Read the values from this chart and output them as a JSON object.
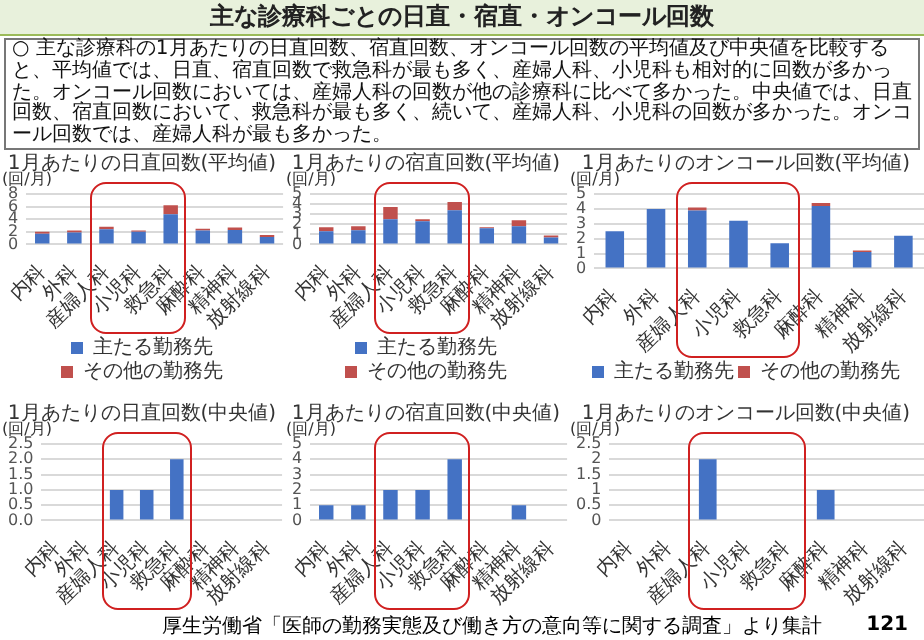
{
  "chart_data": [
    {
      "type": "other",
      "title": "主な診療科ごとの日直・宿直・オンコール回数",
      "annotations": [
        "○ 主な診療科の1月あたりの日直回数、宿直回数、オンコール回数の平均値及び中央値を比較すると、平均値では、日直、宿直回数で救急科が最も多く、産婦人科、小児科も相対的に回数が多かった。オンコール回数においては、産婦人科の回数が他の診療科に比べて多かった。中央値では、日直回数、宿直回数において、救急科が最も多く、続いて、産婦人科、小児科の回数が多かった。オンコール回数では、産婦人科が最も多かった。",
        "厚生労働省「医師の勤務実態及び働き方の意向等に関する調査」より集計",
        "121"
      ]
    },
    {
      "type": "bar",
      "title": "1月あたりの日直回数(平均値)",
      "ylabel": "(回/月)",
      "categories": [
        "内科",
        "外科",
        "産婦人科",
        "小児科",
        "救急科",
        "麻酔科",
        "精神科",
        "放射線科"
      ],
      "stacked": true,
      "ylim": [
        0,
        8
      ],
      "yticks": [
        0,
        2,
        4,
        6,
        8
      ],
      "grid": "y",
      "legend": "bottom",
      "series": [
        {
          "name": "主たる勤務先",
          "color": "#4472c4",
          "values": [
            1.7,
            1.9,
            2.4,
            2.0,
            4.8,
            2.2,
            2.3,
            1.2
          ]
        },
        {
          "name": "その他の勤務先",
          "color": "#c0504d",
          "values": [
            0.3,
            0.3,
            0.4,
            0.2,
            1.4,
            0.3,
            0.4,
            0.3
          ]
        }
      ]
    },
    {
      "type": "bar",
      "title": "1月あたりの宿直回数(平均値)",
      "ylabel": "(回/月)",
      "categories": [
        "内科",
        "外科",
        "産婦人科",
        "小児科",
        "救急科",
        "麻酔科",
        "精神科",
        "放射線科"
      ],
      "stacked": true,
      "ylim": [
        0,
        5
      ],
      "yticks": [
        0,
        1,
        2,
        3,
        4,
        5
      ],
      "grid": "y",
      "legend": "bottom",
      "series": [
        {
          "name": "主たる勤務先",
          "color": "#4472c4",
          "values": [
            1.3,
            1.4,
            2.5,
            2.3,
            3.4,
            1.6,
            1.8,
            0.7
          ]
        },
        {
          "name": "その他の勤務先",
          "color": "#c0504d",
          "values": [
            0.4,
            0.4,
            1.2,
            0.2,
            0.8,
            0.1,
            0.6,
            0.2
          ]
        }
      ]
    },
    {
      "type": "bar",
      "title": "1月あたりのオンコール回数(平均値)",
      "ylabel": "(回/月)",
      "categories": [
        "内科",
        "外科",
        "産婦人科",
        "小児科",
        "救急科",
        "麻酔科",
        "精神科",
        "放射線科"
      ],
      "stacked": true,
      "ylim": [
        0,
        5
      ],
      "yticks": [
        0,
        1,
        2,
        3,
        4,
        5
      ],
      "grid": "y",
      "legend": "bottom",
      "series": [
        {
          "name": "主たる勤務先",
          "color": "#4472c4",
          "values": [
            2.5,
            4.0,
            3.9,
            3.2,
            1.7,
            4.2,
            1.1,
            2.2
          ]
        },
        {
          "name": "その他の勤務先",
          "color": "#c0504d",
          "values": [
            0,
            0,
            0.2,
            0,
            0,
            0.2,
            0.1,
            0
          ]
        }
      ]
    },
    {
      "type": "bar",
      "title": "1月あたりの日直回数(中央値)",
      "ylabel": "(回/月)",
      "categories": [
        "内科",
        "外科",
        "産婦人科",
        "小児科",
        "救急科",
        "麻酔科",
        "精神科",
        "放射線科"
      ],
      "ylim": [
        0,
        2.5
      ],
      "yticks": [
        {
          "value": 0,
          "label": "0.0"
        },
        {
          "value": 0.5,
          "label": "0.5"
        },
        {
          "value": 1,
          "label": "1.0"
        },
        {
          "value": 1.5,
          "label": "1.5"
        },
        {
          "value": 2,
          "label": "2.0"
        },
        {
          "value": 2.5,
          "label": "2.5"
        }
      ],
      "grid": "y",
      "color": "#4472c4",
      "values": [
        0,
        0,
        1,
        1,
        2,
        0,
        0,
        0
      ]
    },
    {
      "type": "bar",
      "title": "1月あたりの宿直回数(中央値)",
      "ylabel": "(回/月)",
      "categories": [
        "内科",
        "外科",
        "産婦人科",
        "小児科",
        "救急科",
        "麻酔科",
        "精神科",
        "放射線科"
      ],
      "ylim": [
        0,
        5
      ],
      "yticks": [
        0,
        1,
        2,
        3,
        4,
        5
      ],
      "grid": "y",
      "color": "#4472c4",
      "values": [
        1,
        1,
        2,
        2,
        4,
        0,
        1,
        0
      ]
    },
    {
      "type": "bar",
      "title": "1月あたりのオンコール回数(中央値)",
      "ylabel": "(回/月)",
      "categories": [
        "内科",
        "外科",
        "産婦人科",
        "小児科",
        "救急科",
        "麻酔科",
        "精神科",
        "放射線科"
      ],
      "ylim": [
        0,
        2.5
      ],
      "yticks": [
        0,
        0.5,
        1,
        1.5,
        2,
        2.5
      ],
      "grid": "y",
      "color": "#4472c4",
      "values": [
        0,
        0,
        2,
        0,
        0,
        1,
        0,
        0
      ]
    }
  ]
}
